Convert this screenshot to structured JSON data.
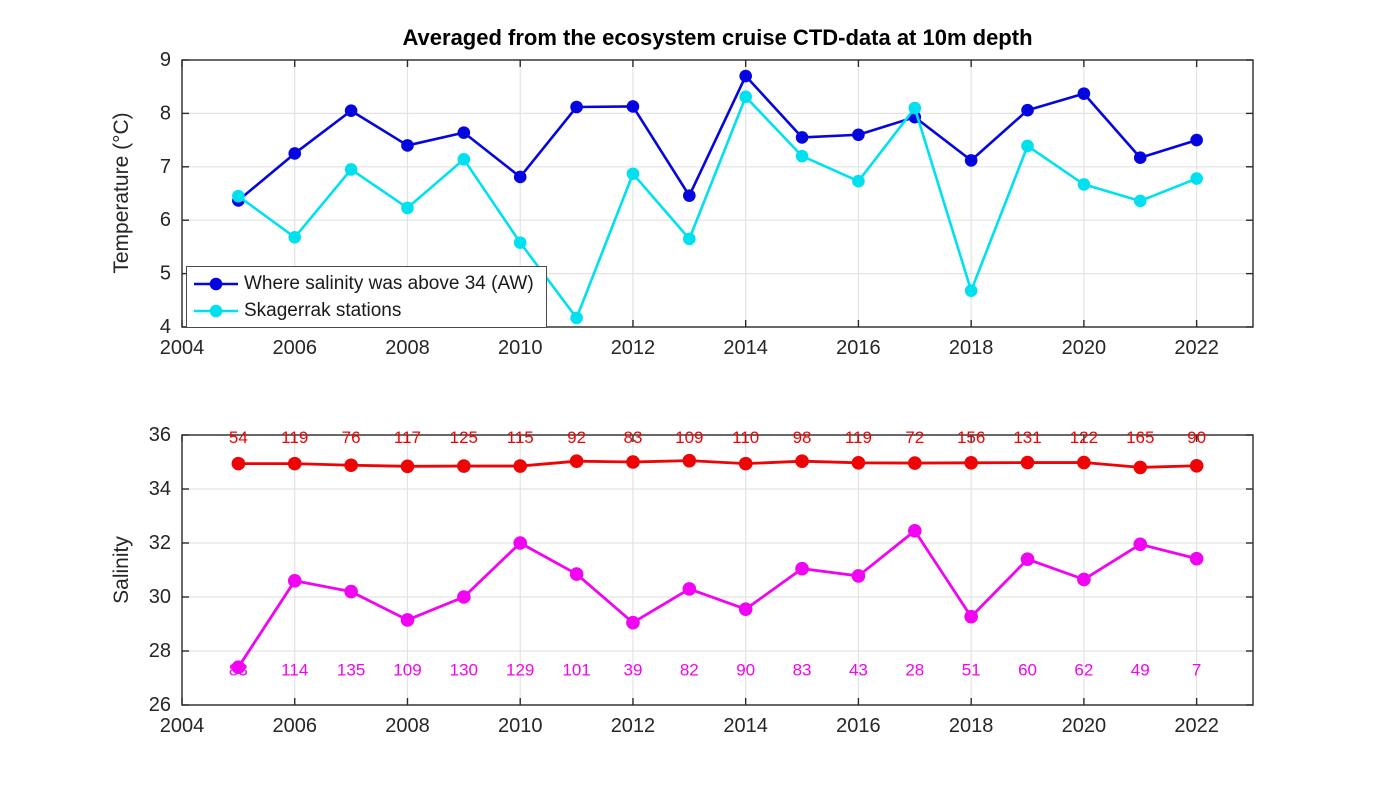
{
  "figure": {
    "title": "Averaged from the ecosystem cruise CTD-data at 10m depth"
  },
  "chart_data": [
    {
      "type": "line",
      "title": "Averaged from the ecosystem cruise CTD-data at 10m depth",
      "xlabel": "",
      "ylabel": "Temperature (°C)",
      "xlim": [
        2004,
        2023
      ],
      "ylim": [
        4,
        9
      ],
      "xticks": [
        2004,
        2006,
        2008,
        2010,
        2012,
        2014,
        2016,
        2018,
        2020,
        2022
      ],
      "yticks": [
        4,
        5,
        6,
        7,
        8,
        9
      ],
      "grid": true,
      "legend_position": "southwest",
      "x": [
        2005,
        2006,
        2007,
        2008,
        2009,
        2010,
        2011,
        2012,
        2013,
        2014,
        2015,
        2016,
        2017,
        2018,
        2019,
        2020,
        2021,
        2022
      ],
      "series": [
        {
          "name": "Where salinity was above 34 (AW)",
          "color": "#0505e0",
          "values": [
            6.37,
            7.25,
            8.05,
            7.4,
            7.64,
            6.81,
            8.12,
            8.13,
            6.46,
            8.7,
            7.55,
            7.6,
            7.93,
            7.12,
            8.06,
            8.37,
            7.17,
            7.5
          ]
        },
        {
          "name": "Skagerrak stations",
          "color": "#00e1f0",
          "values": [
            6.45,
            5.68,
            6.95,
            6.23,
            7.14,
            5.58,
            4.17,
            6.87,
            5.65,
            8.31,
            7.2,
            6.73,
            8.1,
            4.68,
            7.39,
            6.67,
            6.36,
            6.78
          ]
        }
      ]
    },
    {
      "type": "line",
      "title": "",
      "xlabel": "",
      "ylabel": "Salinity",
      "xlim": [
        2004,
        2023
      ],
      "ylim": [
        26,
        36
      ],
      "xticks": [
        2004,
        2006,
        2008,
        2010,
        2012,
        2014,
        2016,
        2018,
        2020,
        2022
      ],
      "yticks": [
        26,
        28,
        30,
        32,
        34,
        36
      ],
      "grid": true,
      "x": [
        2005,
        2006,
        2007,
        2008,
        2009,
        2010,
        2011,
        2012,
        2013,
        2014,
        2015,
        2016,
        2017,
        2018,
        2019,
        2020,
        2021,
        2022
      ],
      "series": [
        {
          "color": "#ee0404",
          "values": [
            34.94,
            34.94,
            34.88,
            34.84,
            34.85,
            34.85,
            35.03,
            35.0,
            35.05,
            34.94,
            35.03,
            34.97,
            34.96,
            34.97,
            34.98,
            34.98,
            34.8,
            34.86
          ],
          "point_labels": [
            54,
            119,
            76,
            117,
            125,
            115,
            92,
            83,
            109,
            110,
            98,
            119,
            72,
            156,
            131,
            122,
            165,
            90
          ],
          "point_labels_y": 35.9
        },
        {
          "color": "#f104f1",
          "values": [
            27.4,
            30.6,
            30.2,
            29.15,
            30.0,
            32.0,
            30.85,
            29.05,
            30.3,
            29.55,
            31.05,
            30.78,
            32.45,
            29.27,
            31.4,
            30.65,
            31.95,
            31.42
          ],
          "point_labels": [
            83,
            114,
            135,
            109,
            130,
            129,
            101,
            39,
            82,
            90,
            83,
            43,
            28,
            51,
            60,
            62,
            49,
            7
          ],
          "point_labels_y": 27.3
        }
      ]
    }
  ]
}
